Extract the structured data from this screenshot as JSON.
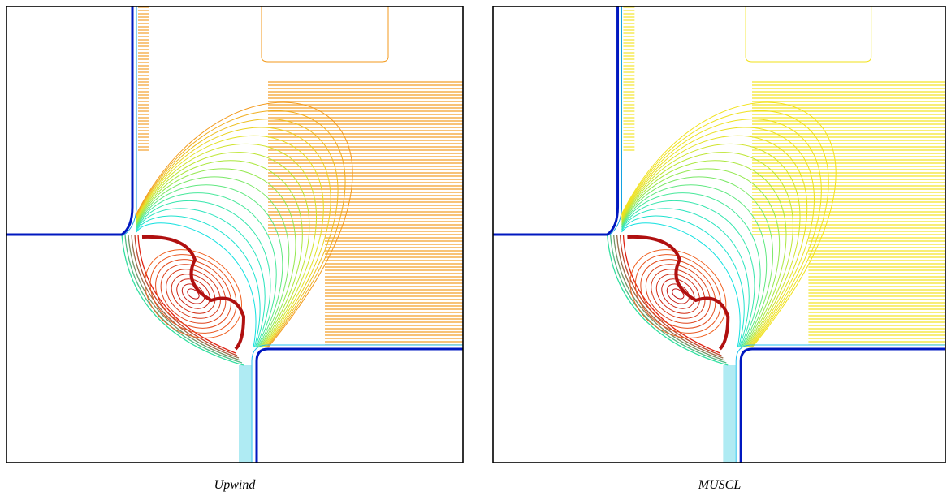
{
  "figure": {
    "panels": [
      {
        "caption": "Upwind"
      },
      {
        "caption": "MUSCL"
      }
    ]
  }
}
